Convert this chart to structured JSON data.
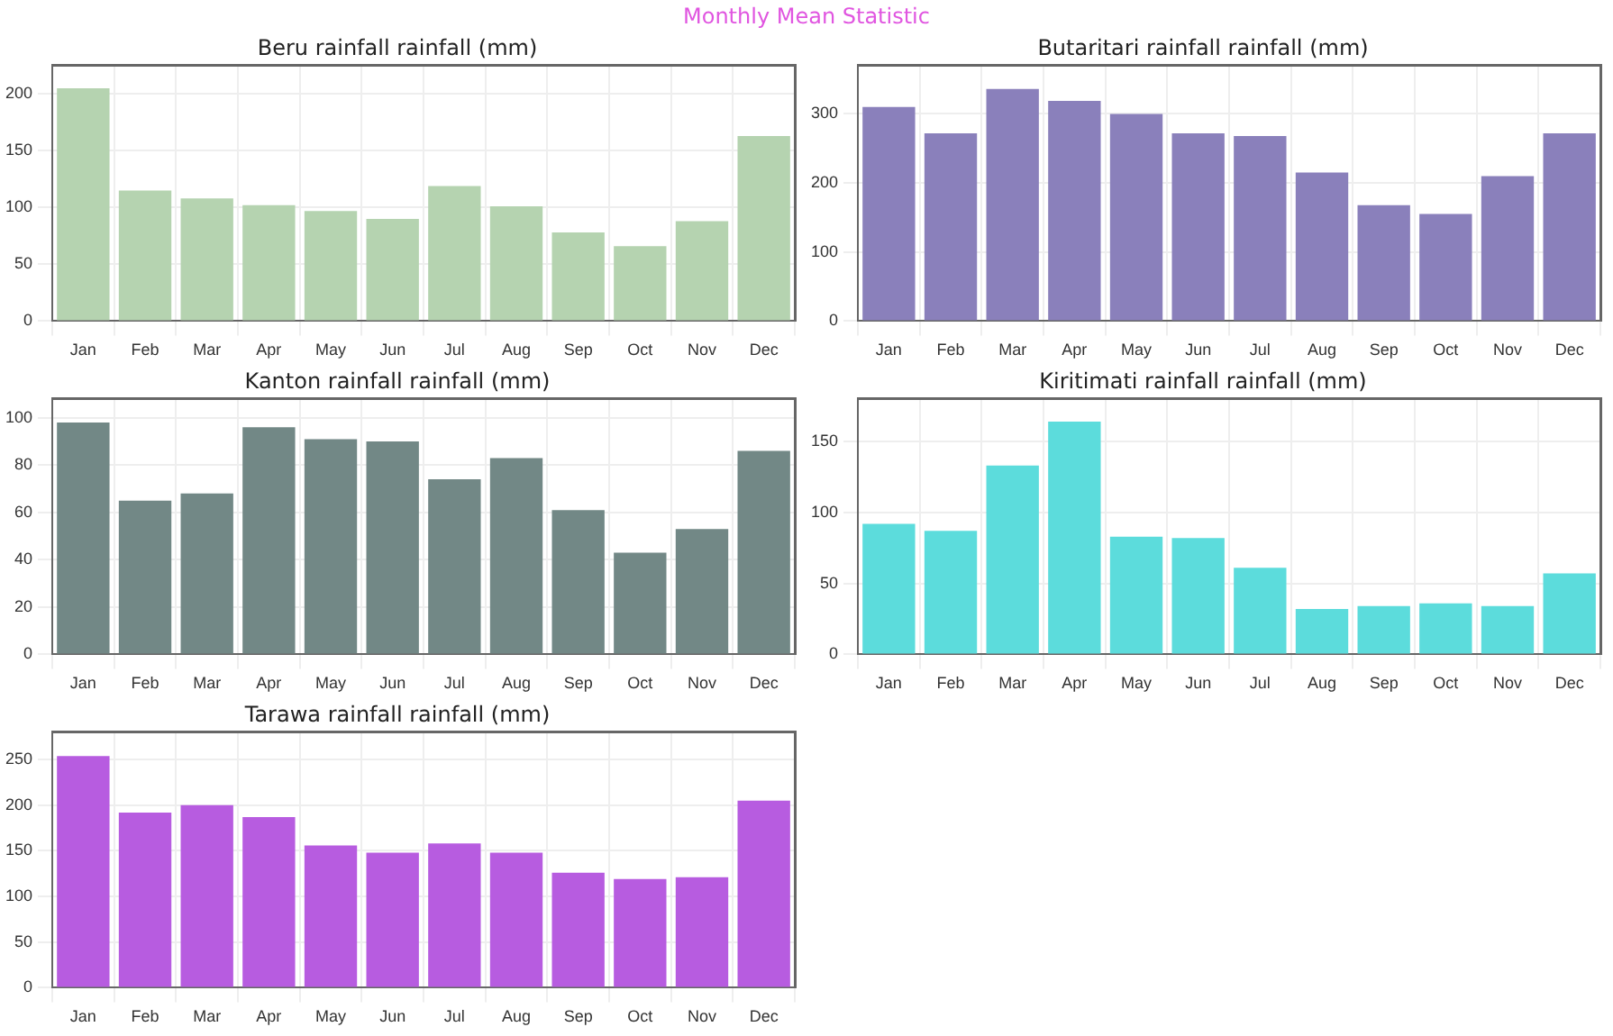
{
  "chart_data": [
    {
      "type": "other",
      "title": "Monthly Mean Statistic"
    },
    {
      "type": "bar",
      "title": "Beru rainfall rainfall (mm)",
      "categories": [
        "Jan",
        "Feb",
        "Mar",
        "Apr",
        "May",
        "Jun",
        "Jul",
        "Aug",
        "Sep",
        "Oct",
        "Nov",
        "Dec"
      ],
      "values": [
        205,
        115,
        108,
        102,
        97,
        90,
        119,
        101,
        78,
        66,
        88,
        163
      ],
      "color": "#b5d3b0",
      "ylim": [
        0,
        225
      ],
      "yticks": [
        0,
        50,
        100,
        150,
        200
      ],
      "grid": true
    },
    {
      "type": "bar",
      "title": "Butaritari rainfall rainfall (mm)",
      "categories": [
        "Jan",
        "Feb",
        "Mar",
        "Apr",
        "May",
        "Jun",
        "Jul",
        "Aug",
        "Sep",
        "Oct",
        "Nov",
        "Dec"
      ],
      "values": [
        310,
        272,
        336,
        319,
        300,
        272,
        268,
        215,
        168,
        155,
        210,
        272
      ],
      "color": "#8a80bb",
      "ylim": [
        0,
        370
      ],
      "yticks": [
        0,
        100,
        200,
        300
      ],
      "grid": true
    },
    {
      "type": "bar",
      "title": "Kanton rainfall rainfall (mm)",
      "categories": [
        "Jan",
        "Feb",
        "Mar",
        "Apr",
        "May",
        "Jun",
        "Jul",
        "Aug",
        "Sep",
        "Oct",
        "Nov",
        "Dec"
      ],
      "values": [
        98,
        65,
        68,
        96,
        91,
        90,
        74,
        83,
        61,
        43,
        53,
        86
      ],
      "color": "#728886",
      "ylim": [
        0,
        108
      ],
      "yticks": [
        0,
        20,
        40,
        60,
        80,
        100
      ],
      "grid": true
    },
    {
      "type": "bar",
      "title": "Kiritimati rainfall rainfall (mm)",
      "categories": [
        "Jan",
        "Feb",
        "Mar",
        "Apr",
        "May",
        "Jun",
        "Jul",
        "Aug",
        "Sep",
        "Oct",
        "Nov",
        "Dec"
      ],
      "values": [
        92,
        87,
        133,
        164,
        83,
        82,
        61,
        32,
        34,
        36,
        34,
        57
      ],
      "color": "#5cdcdc",
      "ylim": [
        0,
        180
      ],
      "yticks": [
        0,
        50,
        100,
        150
      ],
      "grid": true
    },
    {
      "type": "bar",
      "title": "Tarawa rainfall rainfall (mm)",
      "categories": [
        "Jan",
        "Feb",
        "Mar",
        "Apr",
        "May",
        "Jun",
        "Jul",
        "Aug",
        "Sep",
        "Oct",
        "Nov",
        "Dec"
      ],
      "values": [
        254,
        192,
        200,
        187,
        156,
        148,
        158,
        148,
        126,
        119,
        121,
        205
      ],
      "color": "#b75ce0",
      "ylim": [
        0,
        280
      ],
      "yticks": [
        0,
        50,
        100,
        150,
        200,
        250
      ],
      "grid": true
    }
  ]
}
